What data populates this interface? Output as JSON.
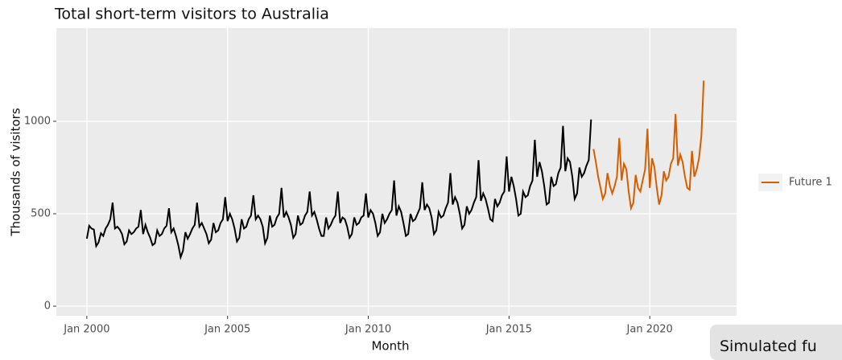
{
  "chart_data": {
    "type": "line",
    "title": "Total short-term visitors to Australia",
    "x_label": "Month",
    "y_label": "Thousands of visitors",
    "xlim": [
      "1998-12",
      "2023-02"
    ],
    "ylim": [
      -52,
      1504
    ],
    "xticks": [
      {
        "value": "2000-01",
        "label": "Jan 2000"
      },
      {
        "value": "2005-01",
        "label": "Jan 2005"
      },
      {
        "value": "2010-01",
        "label": "Jan 2010"
      },
      {
        "value": "2015-01",
        "label": "Jan 2015"
      },
      {
        "value": "2020-01",
        "label": "Jan 2020"
      }
    ],
    "yticks": [
      0,
      500,
      1000
    ],
    "grid": true,
    "legend": "right",
    "annotation": "Simulated fu",
    "series": [
      {
        "color": "#000000",
        "x": [
          "2000-01",
          "2000-02",
          "2000-03",
          "2000-04",
          "2000-05",
          "2000-06",
          "2000-07",
          "2000-08",
          "2000-09",
          "2000-10",
          "2000-11",
          "2000-12",
          "2001-01",
          "2001-02",
          "2001-03",
          "2001-04",
          "2001-05",
          "2001-06",
          "2001-07",
          "2001-08",
          "2001-09",
          "2001-10",
          "2001-11",
          "2001-12",
          "2002-01",
          "2002-02",
          "2002-03",
          "2002-04",
          "2002-05",
          "2002-06",
          "2002-07",
          "2002-08",
          "2002-09",
          "2002-10",
          "2002-11",
          "2002-12",
          "2003-01",
          "2003-02",
          "2003-03",
          "2003-04",
          "2003-05",
          "2003-06",
          "2003-07",
          "2003-08",
          "2003-09",
          "2003-10",
          "2003-11",
          "2003-12",
          "2004-01",
          "2004-02",
          "2004-03",
          "2004-04",
          "2004-05",
          "2004-06",
          "2004-07",
          "2004-08",
          "2004-09",
          "2004-10",
          "2004-11",
          "2004-12",
          "2005-01",
          "2005-02",
          "2005-03",
          "2005-04",
          "2005-05",
          "2005-06",
          "2005-07",
          "2005-08",
          "2005-09",
          "2005-10",
          "2005-11",
          "2005-12",
          "2006-01",
          "2006-02",
          "2006-03",
          "2006-04",
          "2006-05",
          "2006-06",
          "2006-07",
          "2006-08",
          "2006-09",
          "2006-10",
          "2006-11",
          "2006-12",
          "2007-01",
          "2007-02",
          "2007-03",
          "2007-04",
          "2007-05",
          "2007-06",
          "2007-07",
          "2007-08",
          "2007-09",
          "2007-10",
          "2007-11",
          "2007-12",
          "2008-01",
          "2008-02",
          "2008-03",
          "2008-04",
          "2008-05",
          "2008-06",
          "2008-07",
          "2008-08",
          "2008-09",
          "2008-10",
          "2008-11",
          "2008-12",
          "2009-01",
          "2009-02",
          "2009-03",
          "2009-04",
          "2009-05",
          "2009-06",
          "2009-07",
          "2009-08",
          "2009-09",
          "2009-10",
          "2009-11",
          "2009-12",
          "2010-01",
          "2010-02",
          "2010-03",
          "2010-04",
          "2010-05",
          "2010-06",
          "2010-07",
          "2010-08",
          "2010-09",
          "2010-10",
          "2010-11",
          "2010-12",
          "2011-01",
          "2011-02",
          "2011-03",
          "2011-04",
          "2011-05",
          "2011-06",
          "2011-07",
          "2011-08",
          "2011-09",
          "2011-10",
          "2011-11",
          "2011-12",
          "2012-01",
          "2012-02",
          "2012-03",
          "2012-04",
          "2012-05",
          "2012-06",
          "2012-07",
          "2012-08",
          "2012-09",
          "2012-10",
          "2012-11",
          "2012-12",
          "2013-01",
          "2013-02",
          "2013-03",
          "2013-04",
          "2013-05",
          "2013-06",
          "2013-07",
          "2013-08",
          "2013-09",
          "2013-10",
          "2013-11",
          "2013-12",
          "2014-01",
          "2014-02",
          "2014-03",
          "2014-04",
          "2014-05",
          "2014-06",
          "2014-07",
          "2014-08",
          "2014-09",
          "2014-10",
          "2014-11",
          "2014-12",
          "2015-01",
          "2015-02",
          "2015-03",
          "2015-04",
          "2015-05",
          "2015-06",
          "2015-07",
          "2015-08",
          "2015-09",
          "2015-10",
          "2015-11",
          "2015-12",
          "2016-01",
          "2016-02",
          "2016-03",
          "2016-04",
          "2016-05",
          "2016-06",
          "2016-07",
          "2016-08",
          "2016-09",
          "2016-10",
          "2016-11",
          "2016-12",
          "2017-01",
          "2017-02",
          "2017-03",
          "2017-04",
          "2017-05",
          "2017-06",
          "2017-07",
          "2017-08",
          "2017-09",
          "2017-10",
          "2017-11",
          "2017-12"
        ],
        "values": [
          365,
          435,
          420,
          415,
          325,
          345,
          395,
          380,
          420,
          440,
          470,
          560,
          420,
          430,
          415,
          390,
          335,
          350,
          410,
          390,
          400,
          420,
          430,
          520,
          390,
          440,
          400,
          370,
          330,
          340,
          410,
          380,
          390,
          420,
          435,
          530,
          400,
          420,
          380,
          330,
          265,
          300,
          400,
          365,
          390,
          420,
          440,
          560,
          430,
          450,
          420,
          390,
          340,
          360,
          450,
          400,
          410,
          450,
          470,
          590,
          460,
          500,
          470,
          420,
          350,
          370,
          470,
          420,
          430,
          470,
          490,
          600,
          470,
          490,
          470,
          430,
          340,
          370,
          490,
          430,
          440,
          480,
          500,
          640,
          480,
          510,
          480,
          440,
          370,
          390,
          490,
          440,
          450,
          490,
          510,
          620,
          490,
          510,
          470,
          420,
          380,
          380,
          480,
          420,
          440,
          470,
          490,
          620,
          450,
          480,
          470,
          430,
          370,
          390,
          480,
          440,
          450,
          480,
          490,
          610,
          480,
          520,
          500,
          450,
          380,
          400,
          500,
          450,
          470,
          500,
          520,
          680,
          490,
          540,
          510,
          450,
          380,
          390,
          500,
          460,
          470,
          500,
          530,
          670,
          520,
          550,
          530,
          480,
          390,
          410,
          510,
          480,
          490,
          530,
          560,
          720,
          550,
          590,
          560,
          500,
          420,
          440,
          540,
          500,
          520,
          560,
          590,
          790,
          570,
          610,
          580,
          530,
          470,
          460,
          580,
          540,
          560,
          600,
          620,
          810,
          620,
          700,
          650,
          580,
          490,
          500,
          620,
          590,
          600,
          650,
          680,
          900,
          700,
          780,
          730,
          650,
          550,
          560,
          700,
          650,
          660,
          720,
          750,
          975,
          730,
          800,
          780,
          700,
          580,
          610,
          750,
          700,
          720,
          760,
          790,
          1010
        ]
      },
      {
        "name": "Future 1",
        "color": "#d55e00",
        "x": [
          "2018-01",
          "2018-02",
          "2018-03",
          "2018-04",
          "2018-05",
          "2018-06",
          "2018-07",
          "2018-08",
          "2018-09",
          "2018-10",
          "2018-11",
          "2018-12",
          "2019-01",
          "2019-02",
          "2019-03",
          "2019-04",
          "2019-05",
          "2019-06",
          "2019-07",
          "2019-08",
          "2019-09",
          "2019-10",
          "2019-11",
          "2019-12",
          "2020-01",
          "2020-02",
          "2020-03",
          "2020-04",
          "2020-05",
          "2020-06",
          "2020-07",
          "2020-08",
          "2020-09",
          "2020-10",
          "2020-11",
          "2020-12",
          "2021-01",
          "2021-02",
          "2021-03",
          "2021-04",
          "2021-05",
          "2021-06",
          "2021-07",
          "2021-08",
          "2021-09",
          "2021-10",
          "2021-11",
          "2021-12"
        ],
        "values": [
          850,
          780,
          700,
          640,
          580,
          610,
          720,
          650,
          610,
          650,
          700,
          910,
          680,
          770,
          740,
          620,
          530,
          560,
          710,
          640,
          620,
          680,
          740,
          960,
          640,
          800,
          750,
          640,
          550,
          600,
          730,
          680,
          700,
          770,
          800,
          1040,
          760,
          820,
          780,
          700,
          640,
          630,
          840,
          700,
          740,
          800,
          920,
          1220
        ]
      }
    ]
  }
}
